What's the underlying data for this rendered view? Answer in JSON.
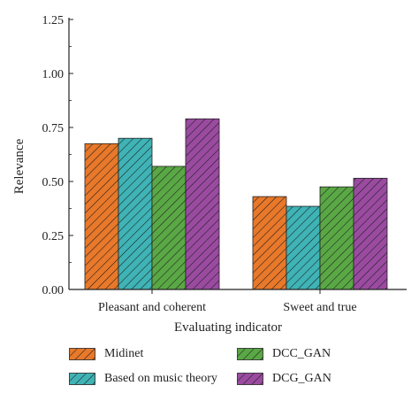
{
  "chart_data": {
    "type": "bar",
    "categories": [
      "Pleasant and coherent",
      "Sweet and true"
    ],
    "series": [
      {
        "name": "Midinet",
        "values": [
          0.675,
          0.43
        ],
        "color": "#e8782a"
      },
      {
        "name": "Based on music theory",
        "values": [
          0.7,
          0.385
        ],
        "color": "#3fb3b5"
      },
      {
        "name": "DCC_GAN",
        "values": [
          0.57,
          0.475
        ],
        "color": "#5aa845"
      },
      {
        "name": "DCG_GAN",
        "values": [
          0.79,
          0.515
        ],
        "color": "#9a4ba0"
      }
    ],
    "title": "",
    "xlabel": "Evaluating indicator",
    "ylabel": "Relevance",
    "ylim": [
      0,
      1.25
    ],
    "yticks": [
      "0.00",
      "0.25",
      "0.50",
      "0.75",
      "1.00",
      "1.25"
    ],
    "legend_position": "bottom",
    "grid": false,
    "bar_pattern": "diagonal-hatch"
  }
}
